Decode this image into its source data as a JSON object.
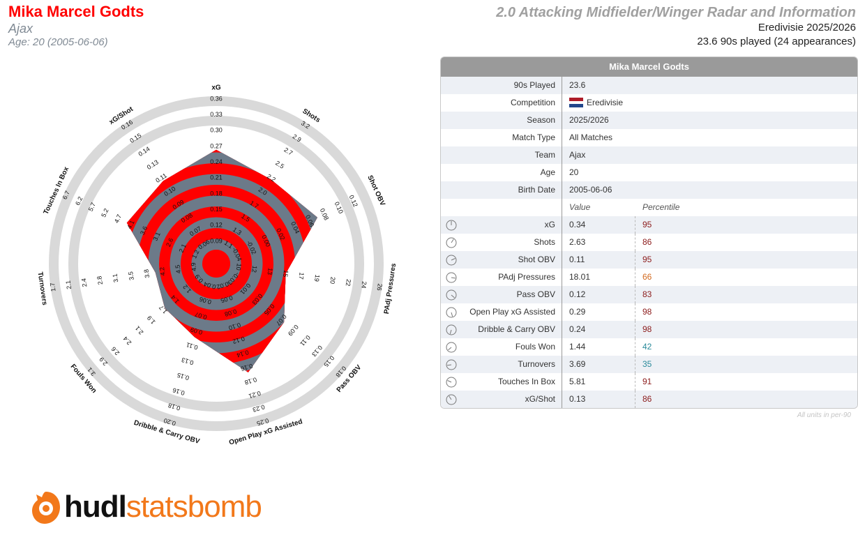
{
  "header": {
    "player_name": "Mika Marcel Godts",
    "team": "Ajax",
    "age_line": "Age: 20 (2005-06-06)",
    "radar_title": "2.0 Attacking Midfielder/Winger Radar and Information",
    "competition_season": "Eredivisie 2025/2026",
    "played_line": "23.6 90s played (24 appearances)"
  },
  "colors": {
    "accent": "#ff0000",
    "polygon_outside": "#6c7a89",
    "ring_bg": "#d9d9d9",
    "percentile_high": "#8b1a1a",
    "percentile_mid": "#d2691e",
    "percentile_low": "#2a8a9a"
  },
  "chart_data": {
    "type": "radar",
    "metrics": [
      {
        "name": "xG",
        "value": 0.34,
        "ticks": [
          "0.09",
          "0.12",
          "0.15",
          "0.18",
          "0.21",
          "0.24",
          "0.27",
          "0.30",
          "0.33",
          "0.36"
        ]
      },
      {
        "name": "Shots",
        "value": 2.63,
        "ticks": [
          "1.1",
          "1.3",
          "1.5",
          "1.7",
          "2.0",
          "2.2",
          "2.5",
          "2.7",
          "2.9",
          "3.2"
        ]
      },
      {
        "name": "Shot OBV",
        "value": 0.11,
        "ticks": [
          "-0.04",
          "-0.02",
          "0.00",
          "0.02",
          "0.04",
          "0.06",
          "0.08",
          "0.10",
          "0.12"
        ]
      },
      {
        "name": "PAdj Pressures",
        "value": 18.01,
        "ticks": [
          "10",
          "12",
          "13",
          "15",
          "17",
          "19",
          "20",
          "22",
          "24",
          "26"
        ]
      },
      {
        "name": "Pass OBV",
        "value": 0.12,
        "ticks": [
          "-0.03",
          "0.01",
          "0.03",
          "0.05",
          "0.07",
          "0.09",
          "0.11",
          "0.13",
          "0.15",
          "0.18"
        ]
      },
      {
        "name": "Open Play xG Assisted",
        "value": 0.29,
        "ticks": [
          "0.02",
          "0.05",
          "0.08",
          "0.10",
          "0.12",
          "0.14",
          "0.16",
          "0.18",
          "0.21",
          "0.23",
          "0.25"
        ]
      },
      {
        "name": "Dribble & Carry OBV",
        "value": 0.24,
        "ticks": [
          "0.04",
          "0.06",
          "0.07",
          "0.09",
          "0.11",
          "0.13",
          "0.15",
          "0.16",
          "0.18",
          "0.20"
        ]
      },
      {
        "name": "Fouls Won",
        "value": 1.44,
        "ticks": [
          "0.9",
          "1.2",
          "1.4",
          "1.7",
          "1.9",
          "2.1",
          "2.4",
          "2.6",
          "2.9",
          "3.1"
        ]
      },
      {
        "name": "Turnovers",
        "value": 3.69,
        "ticks": [
          "4.9",
          "4.5",
          "4.2",
          "3.8",
          "3.5",
          "3.1",
          "2.8",
          "2.4",
          "2.1",
          "1.7"
        ]
      },
      {
        "name": "Touches In Box",
        "value": 5.81,
        "ticks": [
          "1.2",
          "2.1",
          "2.6",
          "3.1",
          "3.6",
          "4.1",
          "4.7",
          "5.2",
          "5.7",
          "6.2",
          "6.7"
        ]
      },
      {
        "name": "xG/Shot",
        "value": 0.13,
        "ticks": [
          "0.06",
          "0.07",
          "0.08",
          "0.09",
          "0.10",
          "0.11",
          "0.13",
          "0.14",
          "0.15",
          "0.16"
        ]
      }
    ],
    "polygon_levels": [
      0.925,
      0.8,
      0.9,
      0.52,
      0.7,
      0.92,
      0.58,
      0.5,
      0.44,
      0.78,
      0.78
    ],
    "rings": 10
  },
  "table": {
    "title": "Mika Marcel Godts",
    "info": [
      {
        "label": "90s Played",
        "value": "23.6"
      },
      {
        "label": "Competition",
        "value": "Eredivisie",
        "flag": true
      },
      {
        "label": "Season",
        "value": "2025/2026"
      },
      {
        "label": "Match Type",
        "value": "All Matches"
      },
      {
        "label": "Team",
        "value": "Ajax"
      },
      {
        "label": "Age",
        "value": "20"
      },
      {
        "label": "Birth Date",
        "value": "2005-06-06"
      }
    ],
    "col_value": "Value",
    "col_percentile": "Percentile",
    "stats": [
      {
        "label": "xG",
        "value": "0.34",
        "pct": "95",
        "tone": "high"
      },
      {
        "label": "Shots",
        "value": "2.63",
        "pct": "86",
        "tone": "high"
      },
      {
        "label": "Shot OBV",
        "value": "0.11",
        "pct": "95",
        "tone": "high"
      },
      {
        "label": "PAdj Pressures",
        "value": "18.01",
        "pct": "66",
        "tone": "mid"
      },
      {
        "label": "Pass OBV",
        "value": "0.12",
        "pct": "83",
        "tone": "high"
      },
      {
        "label": "Open Play xG Assisted",
        "value": "0.29",
        "pct": "98",
        "tone": "high"
      },
      {
        "label": "Dribble & Carry OBV",
        "value": "0.24",
        "pct": "98",
        "tone": "high"
      },
      {
        "label": "Fouls Won",
        "value": "1.44",
        "pct": "42",
        "tone": "low"
      },
      {
        "label": "Turnovers",
        "value": "3.69",
        "pct": "35",
        "tone": "low"
      },
      {
        "label": "Touches In Box",
        "value": "5.81",
        "pct": "91",
        "tone": "high"
      },
      {
        "label": "xG/Shot",
        "value": "0.13",
        "pct": "86",
        "tone": "high"
      }
    ],
    "footnote": "All units in per-90"
  },
  "logo": {
    "brand_bold": "hudl",
    "brand_light": "statsbomb"
  }
}
